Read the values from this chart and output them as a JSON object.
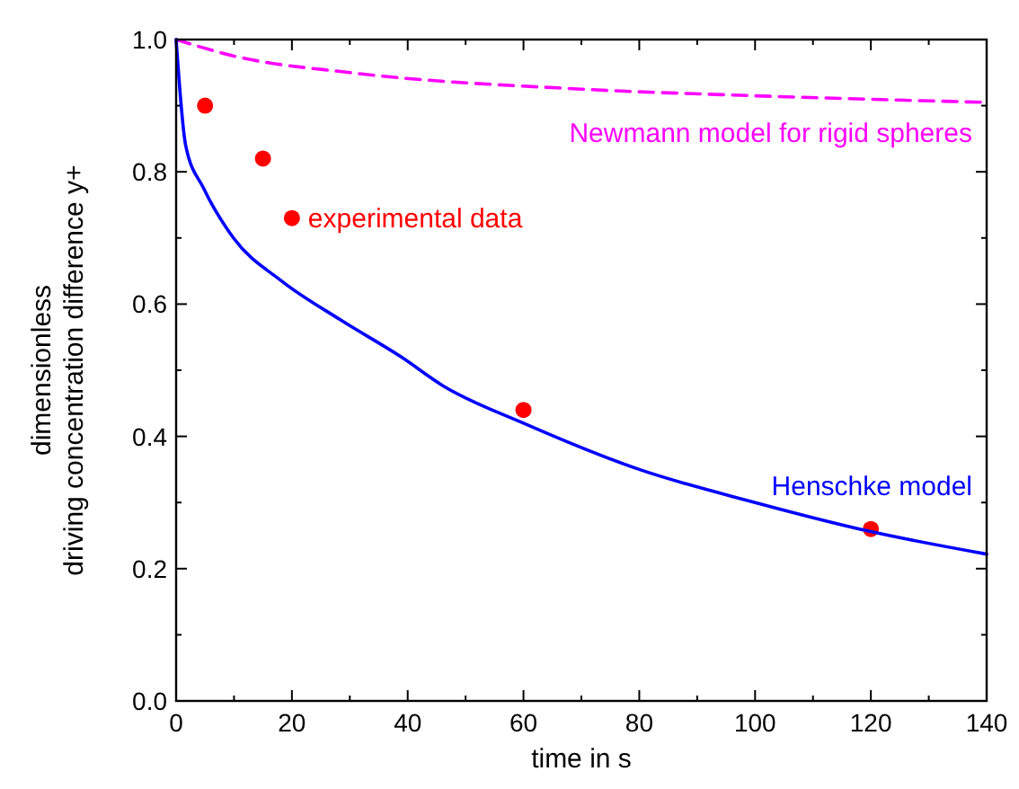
{
  "chart_data": {
    "type": "line",
    "xlabel": "time in s",
    "ylabel": "dimensionless\ndriving concentration difference y+",
    "xlim": [
      0,
      140
    ],
    "xticks": [
      0,
      20,
      40,
      60,
      80,
      100,
      120,
      140
    ],
    "ylim": [
      0,
      1
    ],
    "yticks": [
      {
        "value": 0,
        "label": "0.0"
      },
      0.2,
      0.4,
      0.6,
      0.8,
      {
        "value": 1,
        "label": "1.0"
      }
    ],
    "grid": false,
    "series": [
      {
        "name": "Newmann model for rigid spheres",
        "line_style": "dashed",
        "color": "#ff00ff",
        "x": [
          0,
          10,
          30,
          70,
          100,
          140
        ],
        "values": [
          1,
          0.975,
          0.95,
          0.925,
          0.915,
          0.905
        ]
      },
      {
        "name": "experimental data",
        "type": "scatter",
        "marker": "circle",
        "color": "#ff0000",
        "x": [
          5,
          15,
          20,
          60,
          120
        ],
        "values": [
          0.9,
          0.82,
          0.73,
          0.44,
          0.26
        ]
      },
      {
        "name": "Henschke model",
        "line_style": "solid",
        "color": "#0000ff",
        "x": [
          0,
          1.65,
          4.75,
          9.9,
          18.2,
          28.6,
          38.9,
          46.2,
          60,
          80,
          100,
          120,
          140
        ],
        "values": [
          1,
          0.84,
          0.775,
          0.7,
          0.635,
          0.575,
          0.52,
          0.476,
          0.42,
          0.35,
          0.3,
          0.256,
          0.222
        ]
      }
    ]
  }
}
